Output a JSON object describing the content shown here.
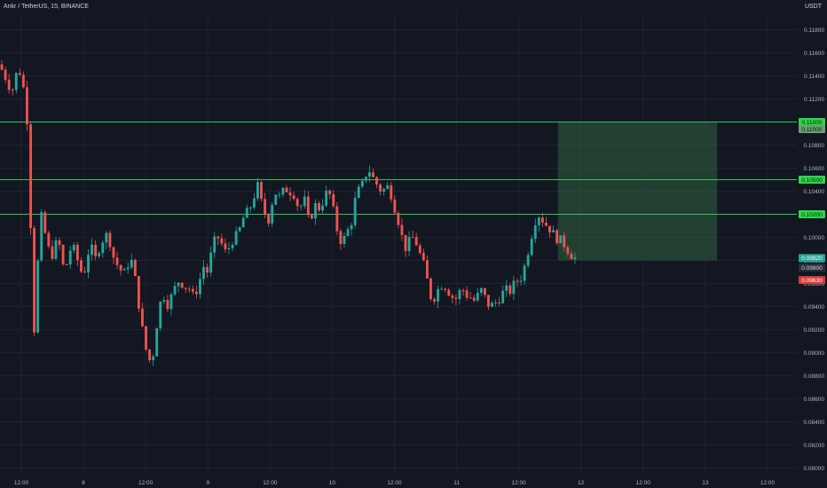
{
  "header": {
    "title": "Ankr / TetherUS, 15, BINANCE",
    "unit": "USDT"
  },
  "colors": {
    "background": "#131722",
    "grid": "#1e222d",
    "up": "#26a69a",
    "down": "#ef5350",
    "level_line": "#26c95a",
    "target_box": "rgba(64,138,80,0.35)",
    "axis_text": "#b2b5be"
  },
  "chart_data": {
    "type": "candlestick",
    "ylim": [
      0.0795,
      0.1195
    ],
    "y_ticks": [
      "0.11800",
      "0.11600",
      "0.11400",
      "0.11200",
      "0.11000",
      "0.10800",
      "0.10600",
      "0.10400",
      "0.10200",
      "0.10000",
      "0.09800",
      "0.09600",
      "0.09400",
      "0.09200",
      "0.09000",
      "0.08800",
      "0.08600",
      "0.08400",
      "0.08200",
      "0.08000"
    ],
    "x_ticks": [
      "12:00",
      "8",
      "12:00",
      "9",
      "12:00",
      "10",
      "12:00",
      "11",
      "12:00",
      "12",
      "12:00",
      "13",
      "12:00"
    ],
    "price_path": [
      0.115,
      0.1145,
      0.1138,
      0.113,
      0.1128,
      0.1148,
      0.114,
      0.112,
      0.108,
      0.09,
      0.0965,
      0.102,
      0.1005,
      0.099,
      0.0985,
      0.0995,
      0.0992,
      0.097,
      0.098,
      0.0995,
      0.0985,
      0.0975,
      0.0965,
      0.0985,
      0.0992,
      0.098,
      0.099,
      0.0998,
      0.1002,
      0.0995,
      0.098,
      0.0975,
      0.097,
      0.0968,
      0.0985,
      0.0972,
      0.095,
      0.0925,
      0.0905,
      0.0893,
      0.0898,
      0.0925,
      0.0945,
      0.095,
      0.094,
      0.0952,
      0.0958,
      0.0965,
      0.0955,
      0.096,
      0.0948,
      0.0952,
      0.0962,
      0.0975,
      0.097,
      0.0985,
      0.0998,
      0.1,
      0.0992,
      0.0985,
      0.0995,
      0.1,
      0.1002,
      0.1015,
      0.102,
      0.1025,
      0.1035,
      0.1045,
      0.103,
      0.102,
      0.1015,
      0.1035,
      0.104,
      0.1032,
      0.1045,
      0.1038,
      0.1042,
      0.103,
      0.1025,
      0.1035,
      0.1015,
      0.102,
      0.1028,
      0.1025,
      0.1032,
      0.104,
      0.1035,
      0.1015,
      0.1,
      0.0995,
      0.1005,
      0.1008,
      0.103,
      0.104,
      0.1045,
      0.1055,
      0.1058,
      0.105,
      0.1045,
      0.104,
      0.1042,
      0.1045,
      0.103,
      0.102,
      0.1005,
      0.099,
      0.0995,
      0.1,
      0.0995,
      0.0985,
      0.0975,
      0.096,
      0.0945,
      0.095,
      0.0958,
      0.096,
      0.0955,
      0.095,
      0.0945,
      0.0952,
      0.0955,
      0.095,
      0.0948,
      0.0945,
      0.095,
      0.0955,
      0.0945,
      0.094,
      0.0942,
      0.0945,
      0.095,
      0.0955,
      0.0952,
      0.0958,
      0.0962,
      0.0965,
      0.0975,
      0.099,
      0.1005,
      0.1018,
      0.102,
      0.1012,
      0.101,
      0.1005,
      0.1,
      0.0998,
      0.0995,
      0.099,
      0.0985,
      0.0982
    ],
    "levels": [
      0.11,
      0.105,
      0.102
    ],
    "target_box": {
      "y_top": 0.11,
      "y_bottom": 0.098,
      "x_start_frac": 0.7,
      "x_end_frac": 0.9
    },
    "price_tags": [
      {
        "value": 0.11,
        "label": "0.11000",
        "style": "green"
      },
      {
        "value": 0.11,
        "label": "0.11000",
        "style": "dim-green",
        "offset": 1
      },
      {
        "value": 0.105,
        "label": "0.10500",
        "style": "green"
      },
      {
        "value": 0.102,
        "label": "0.10200",
        "style": "green"
      },
      {
        "value": 0.0982,
        "label": "0.09820",
        "style": "teal"
      },
      {
        "value": 0.098,
        "label": "0.09800",
        "style": "dark",
        "offset": 1
      },
      {
        "value": 0.0963,
        "label": "0.09630",
        "style": "red"
      }
    ]
  }
}
